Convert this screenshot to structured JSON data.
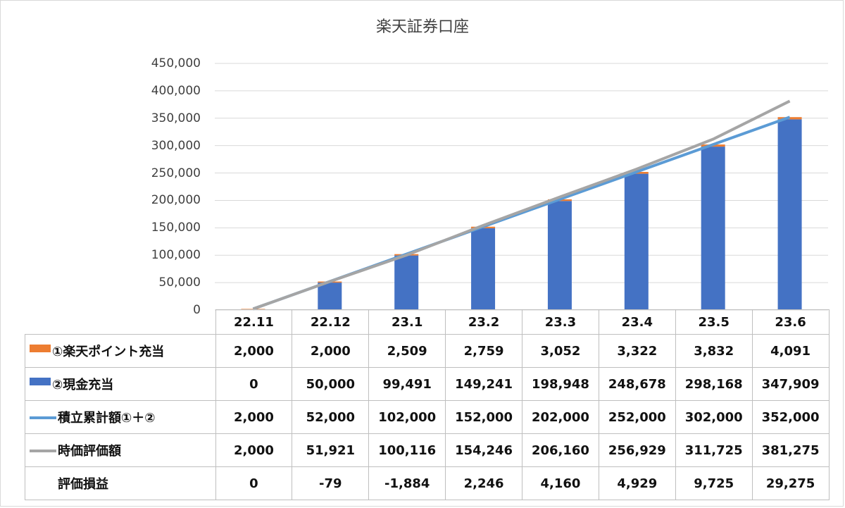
{
  "chart_data": {
    "type": "bar",
    "title": "楽天証券口座",
    "categories": [
      "22.11",
      "22.12",
      "23.1",
      "23.2",
      "23.3",
      "23.4",
      "23.5",
      "23.6"
    ],
    "ylim": [
      0,
      450000
    ],
    "yticks": [
      "450,000",
      "400,000",
      "350,000",
      "300,000",
      "250,000",
      "200,000",
      "150,000",
      "100,000",
      "50,000",
      "0"
    ],
    "grid": true,
    "stacked": true,
    "series": [
      {
        "name": "①楽天ポイント充当",
        "kind": "bar",
        "color": "#ED7D31",
        "values": [
          2000,
          2000,
          2509,
          2759,
          3052,
          3322,
          3832,
          4091
        ],
        "labels": [
          "2,000",
          "2,000",
          "2,509",
          "2,759",
          "3,052",
          "3,322",
          "3,832",
          "4,091"
        ]
      },
      {
        "name": "②現金充当",
        "kind": "bar",
        "color": "#4472C4",
        "values": [
          0,
          50000,
          99491,
          149241,
          198948,
          248678,
          298168,
          347909
        ],
        "labels": [
          "0",
          "50,000",
          "99,491",
          "149,241",
          "198,948",
          "248,678",
          "298,168",
          "347,909"
        ]
      },
      {
        "name": "積立累計額①＋②",
        "kind": "line",
        "color": "#5B9BD5",
        "values": [
          2000,
          52000,
          102000,
          152000,
          202000,
          252000,
          302000,
          352000
        ],
        "labels": [
          "2,000",
          "52,000",
          "102,000",
          "152,000",
          "202,000",
          "252,000",
          "302,000",
          "352,000"
        ]
      },
      {
        "name": "時価評価額",
        "kind": "line",
        "color": "#A5A5A5",
        "values": [
          2000,
          51921,
          100116,
          154246,
          206160,
          256929,
          311725,
          381275
        ],
        "labels": [
          "2,000",
          "51,921",
          "100,116",
          "154,246",
          "206,160",
          "256,929",
          "311,725",
          "381,275"
        ]
      },
      {
        "name": "評価損益",
        "kind": "table-only",
        "color": "",
        "values": [
          0,
          -79,
          -1884,
          2246,
          4160,
          4929,
          9725,
          29275
        ],
        "labels": [
          "0",
          "-79",
          "-1,884",
          "2,246",
          "4,160",
          "4,929",
          "9,725",
          "29,275"
        ]
      }
    ]
  }
}
